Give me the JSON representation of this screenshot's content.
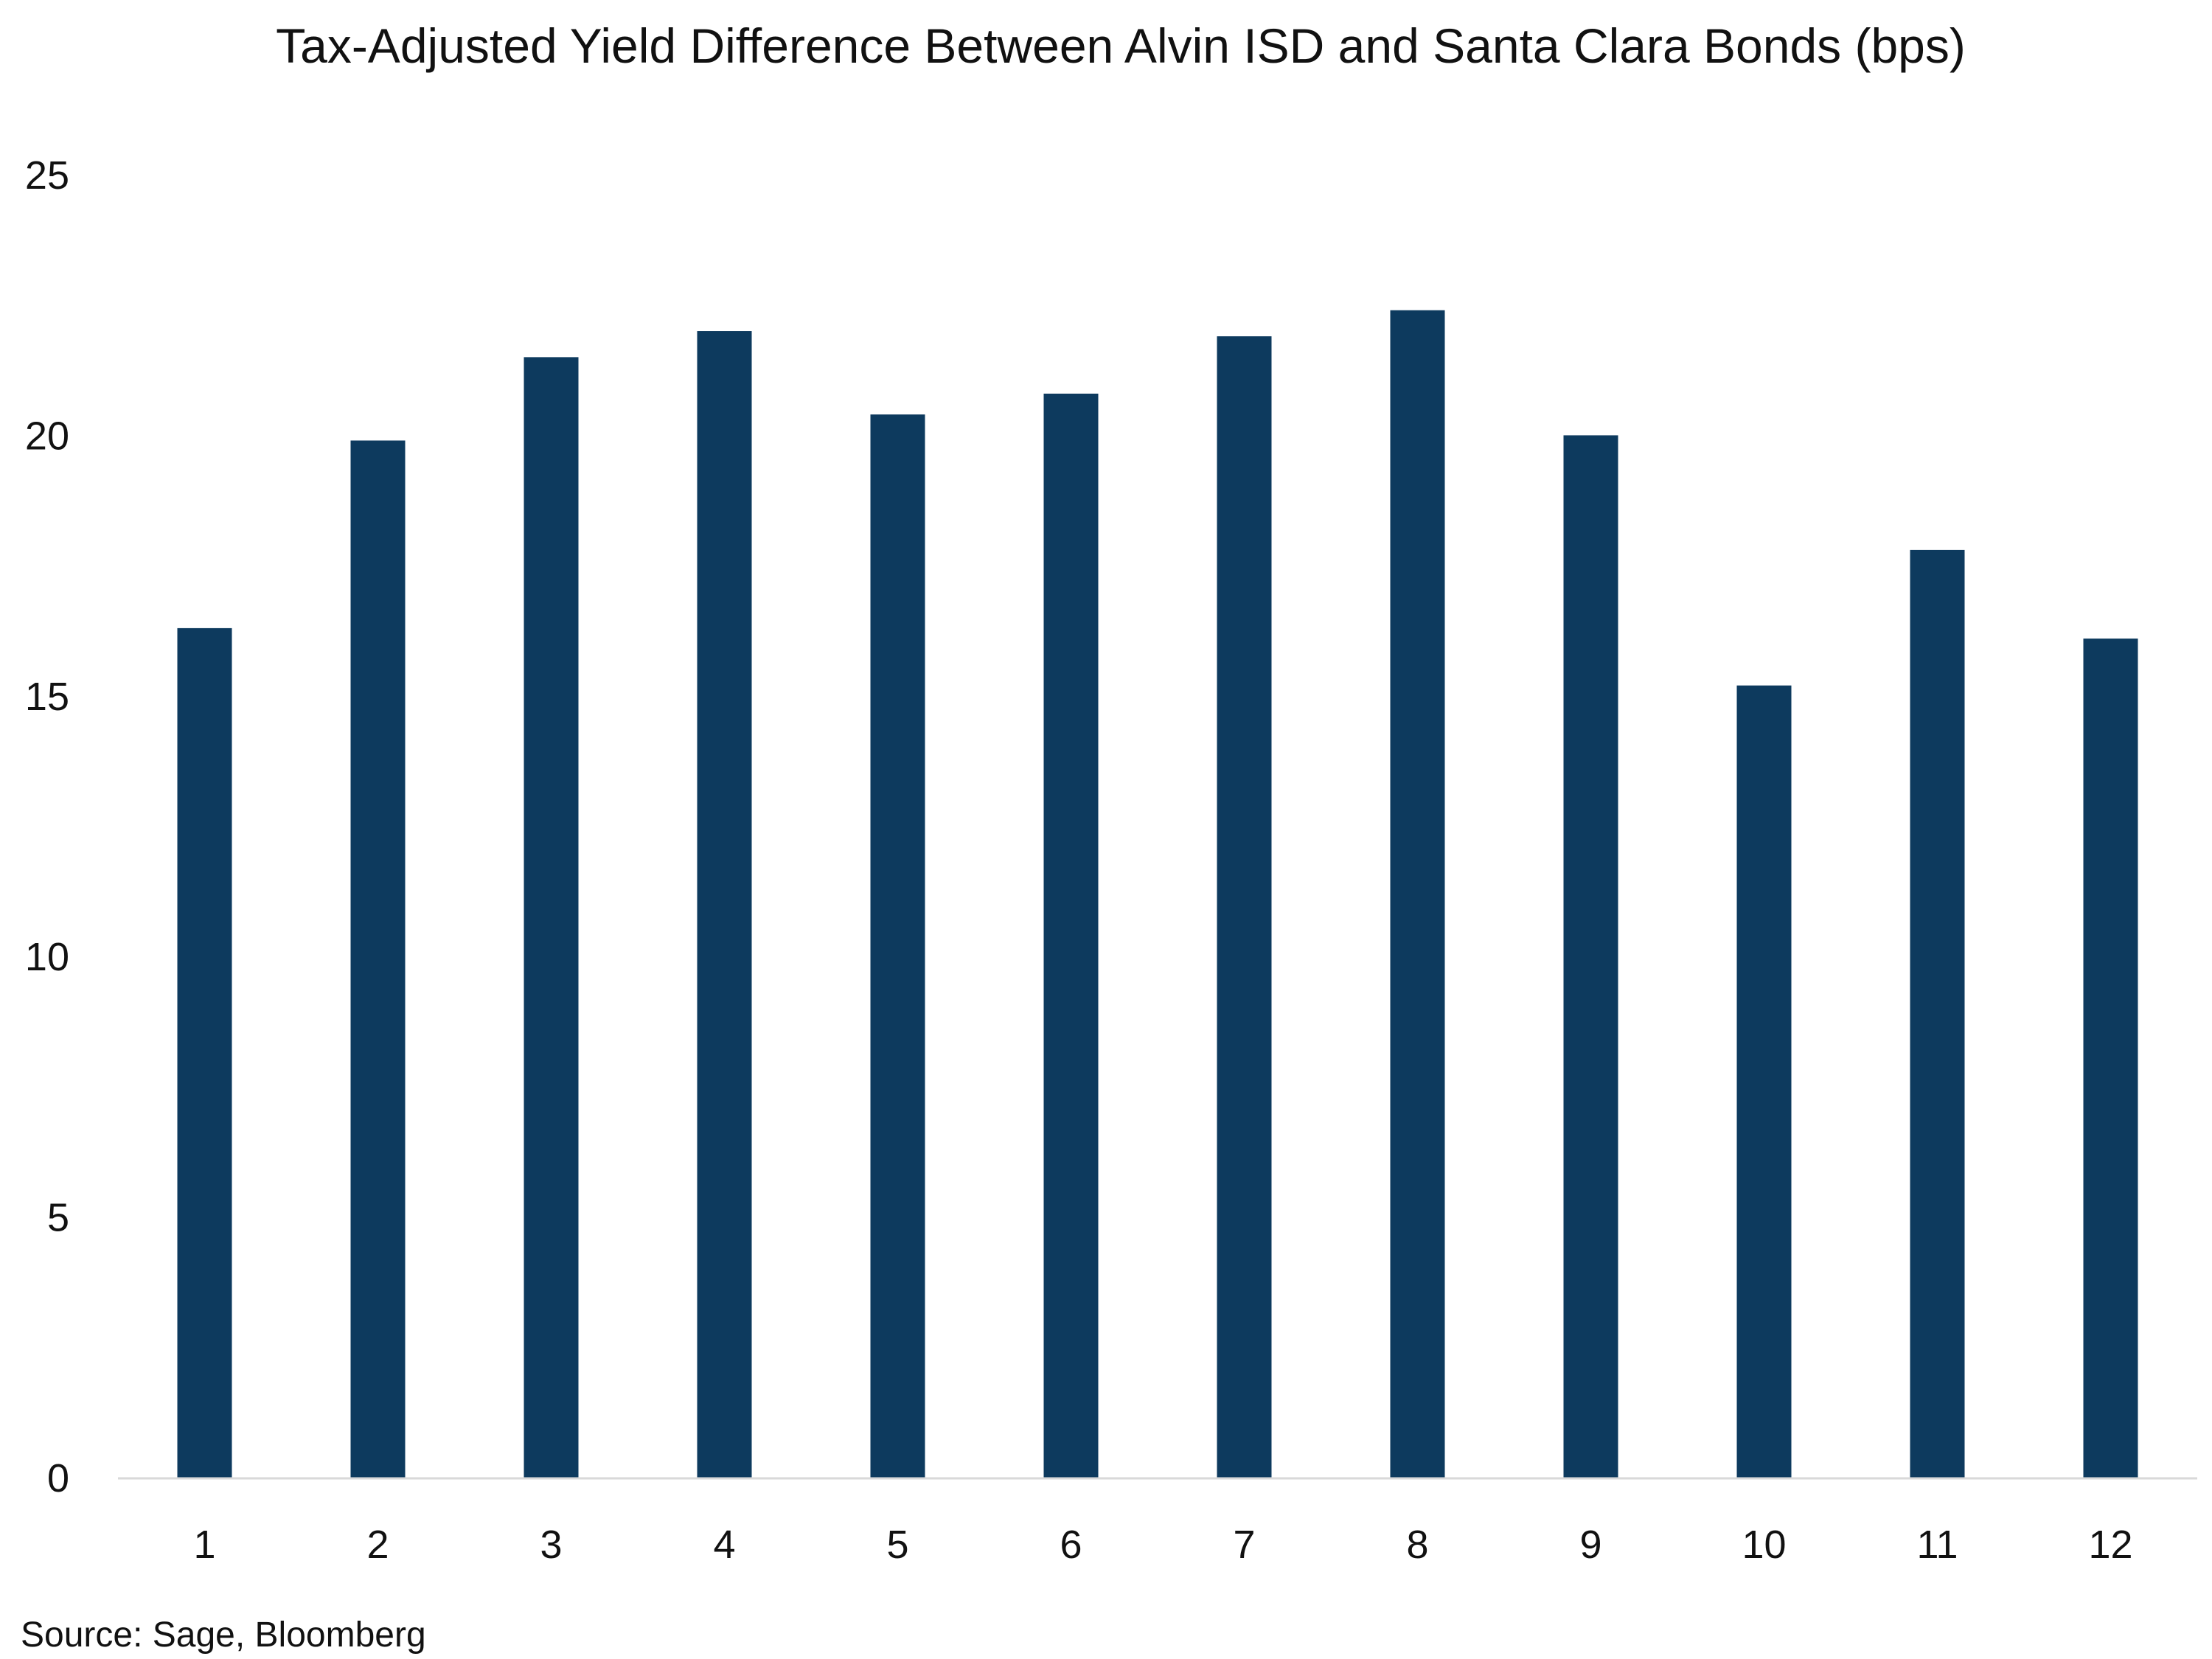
{
  "chart_data": {
    "type": "bar",
    "title": "Tax-Adjusted Yield Difference Between Alvin ISD and Santa Clara Bonds (bps)",
    "categories": [
      "1",
      "2",
      "3",
      "4",
      "5",
      "6",
      "7",
      "8",
      "9",
      "10",
      "11",
      "12"
    ],
    "values": [
      16.3,
      19.9,
      21.5,
      22.0,
      20.4,
      20.8,
      21.9,
      22.4,
      20.0,
      15.2,
      17.8,
      16.1
    ],
    "xlabel": "",
    "ylabel": "",
    "ylim": [
      0,
      25
    ],
    "yticks": [
      "0",
      "5",
      "10",
      "15",
      "20",
      "25"
    ],
    "grid": false,
    "legend": "none",
    "bar_color": "#0d3a5e",
    "axis_color": "#d9d9d9"
  },
  "source": "Source: Sage, Bloomberg"
}
